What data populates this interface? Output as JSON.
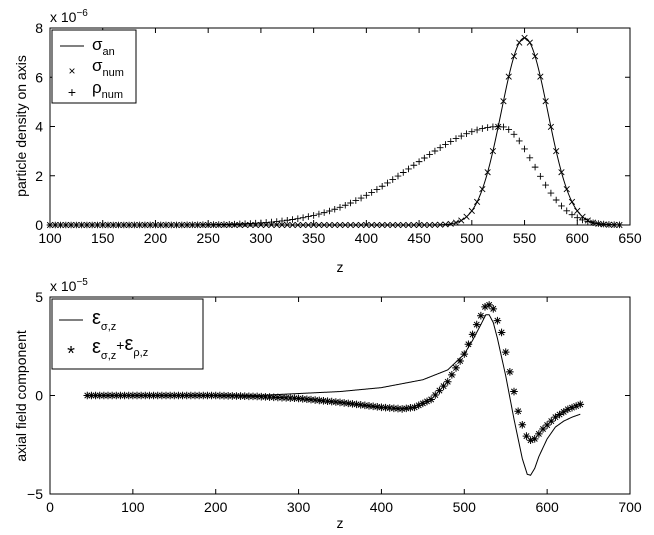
{
  "chart_data": [
    {
      "type": "line",
      "xlabel": "z",
      "ylabel": "particle density on axis",
      "xlim": [
        100,
        650
      ],
      "ylim": [
        0,
        8e-06
      ],
      "x_ticks": [
        "100",
        "150",
        "200",
        "250",
        "300",
        "350",
        "400",
        "450",
        "500",
        "550",
        "600",
        "650"
      ],
      "y_ticks": [
        "0",
        "2",
        "4",
        "6",
        "8"
      ],
      "y_exponent": {
        "base": "x 10",
        "power": "−6"
      },
      "grid": false,
      "legend_position": "top-left",
      "legend": [
        {
          "symbol": "—",
          "main": "σ",
          "sub": "an"
        },
        {
          "symbol": "×",
          "main": "σ",
          "sub": "num"
        },
        {
          "symbol": "+",
          "main": "ρ",
          "sub": "num"
        }
      ],
      "series": [
        {
          "name": "σ_an",
          "style": "line",
          "model": "gaussian",
          "x_range": [
            100,
            640
          ],
          "peak": 7.6e-06,
          "center": 550,
          "sigma_left": 22,
          "sigma_right": 22
        },
        {
          "name": "σ_num",
          "style": "x-marker",
          "model": "gaussian",
          "x_range": [
            100,
            640
          ],
          "step": 5,
          "peak": 7.6e-06,
          "center": 550,
          "sigma_left": 22,
          "sigma_right": 22
        },
        {
          "name": "ρ_num",
          "style": "plus-marker",
          "model": "gaussian",
          "x_range": [
            100,
            640
          ],
          "step": 5,
          "peak": 4e-06,
          "center": 527,
          "sigma_left": 82,
          "sigma_right": 32
        }
      ]
    },
    {
      "type": "line",
      "xlabel": "z",
      "ylabel": "axial field component",
      "xlim": [
        0,
        700
      ],
      "ylim": [
        -5e-05,
        5e-05
      ],
      "x_ticks": [
        "0",
        "100",
        "200",
        "300",
        "400",
        "500",
        "600",
        "700"
      ],
      "y_ticks": [
        "5",
        "0",
        "−5"
      ],
      "y_exponent": {
        "base": "x 10",
        "power": "−5"
      },
      "grid": false,
      "legend_position": "top-left",
      "legend": [
        {
          "symbol": "—",
          "main": "ε",
          "sub": "σ,z",
          "main2": "",
          "sub2": ""
        },
        {
          "symbol": "*",
          "main": "ε",
          "sub": "σ,z",
          "plus": "+",
          "main2": "ε",
          "sub2": "ρ,z"
        }
      ],
      "series": [
        {
          "name": "ε_σ,z",
          "style": "line",
          "points": [
            [
              50,
              0.0
            ],
            [
              100,
              0.0
            ],
            [
              150,
              0.0
            ],
            [
              200,
              0.0
            ],
            [
              250,
              0.0
            ],
            [
              300,
              1e-06
            ],
            [
              350,
              2e-06
            ],
            [
              400,
              4e-06
            ],
            [
              450,
              8e-06
            ],
            [
              480,
              1.3e-05
            ],
            [
              500,
              2.1e-05
            ],
            [
              510,
              2.8e-05
            ],
            [
              520,
              3.6e-05
            ],
            [
              526,
              4.1e-05
            ],
            [
              530,
              4.1e-05
            ],
            [
              535,
              3.7e-05
            ],
            [
              540,
              2.9e-05
            ],
            [
              550,
              1e-05
            ],
            [
              560,
              -1.2e-05
            ],
            [
              570,
              -3.2e-05
            ],
            [
              576,
              -4e-05
            ],
            [
              580,
              -4.05e-05
            ],
            [
              585,
              -3.7e-05
            ],
            [
              590,
              -3.1e-05
            ],
            [
              600,
              -2.2e-05
            ],
            [
              610,
              -1.6e-05
            ],
            [
              620,
              -1.3e-05
            ],
            [
              630,
              -1.1e-05
            ],
            [
              640,
              -9.5e-06
            ]
          ]
        },
        {
          "name": "ε_σ,z+ε_ρ,z",
          "style": "star-marker",
          "points": [
            [
              45,
              0.0
            ],
            [
              100,
              0.0
            ],
            [
              150,
              0.0
            ],
            [
              200,
              0.0
            ],
            [
              250,
              -5e-07
            ],
            [
              300,
              -1.5e-06
            ],
            [
              350,
              -3.5e-06
            ],
            [
              400,
              -6e-06
            ],
            [
              425,
              -6.8e-06
            ],
            [
              440,
              -6e-06
            ],
            [
              460,
              -2e-06
            ],
            [
              480,
              7e-06
            ],
            [
              500,
              2.1e-05
            ],
            [
              515,
              3.6e-05
            ],
            [
              525,
              4.5e-05
            ],
            [
              530,
              4.6e-05
            ],
            [
              535,
              4.4e-05
            ],
            [
              545,
              3.2e-05
            ],
            [
              555,
              1.2e-05
            ],
            [
              565,
              -8e-06
            ],
            [
              573,
              -1.9e-05
            ],
            [
              578,
              -2.3e-05
            ],
            [
              585,
              -2.2e-05
            ],
            [
              595,
              -1.7e-05
            ],
            [
              610,
              -1.1e-05
            ],
            [
              625,
              -7e-06
            ],
            [
              640,
              -4.5e-06
            ]
          ],
          "step": 5
        }
      ]
    }
  ]
}
